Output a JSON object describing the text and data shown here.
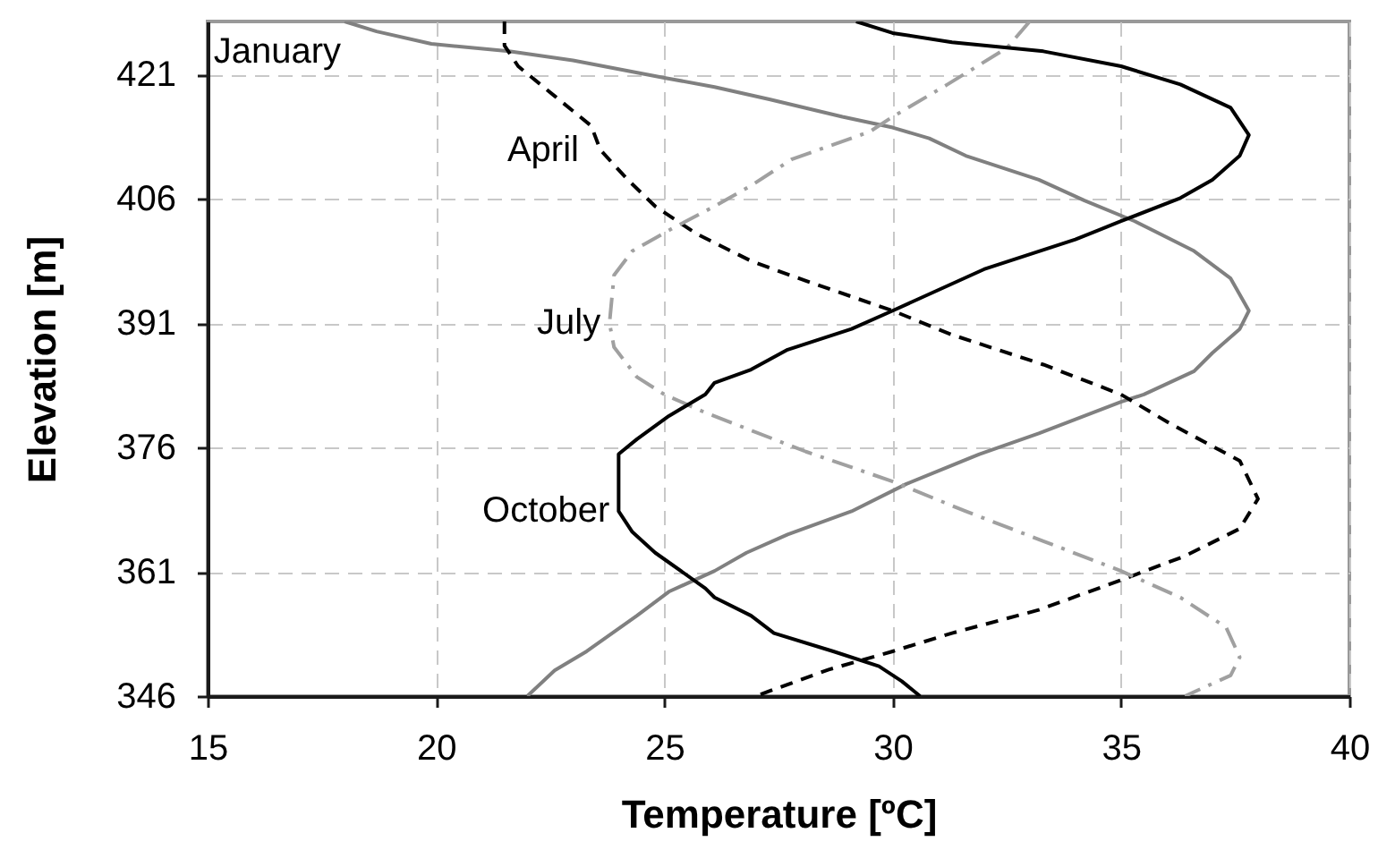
{
  "chart_data": {
    "type": "line",
    "xlabel": "Temperature [ºC]",
    "ylabel": "Elevation [m]",
    "xlim": [
      15,
      40
    ],
    "xticks": [
      15,
      20,
      25,
      30,
      35,
      40
    ],
    "ylim": [
      346,
      427.4
    ],
    "yticks": [
      346,
      361,
      376,
      391,
      406,
      421
    ],
    "grid": true,
    "series": [
      {
        "name": "January",
        "color": "#808080",
        "line_style": "solid",
        "x": [
          18.0,
          18.7,
          19.9,
          21.6,
          23.0,
          25.0,
          26.1,
          27.3,
          28.9,
          30.0,
          30.8,
          31.6,
          33.2,
          34.2,
          35.3,
          36.6,
          37.4,
          37.8,
          37.6,
          37.0,
          36.6,
          35.5,
          35.0,
          33.2,
          31.9,
          30.3,
          29.1,
          27.7,
          26.8,
          26.1,
          25.1,
          24.4,
          23.3,
          22.6,
          22.0
        ],
        "values": [
          427.4,
          426.2,
          424.7,
          423.8,
          422.7,
          420.6,
          419.5,
          418.0,
          415.9,
          414.6,
          413.3,
          411.2,
          408.3,
          405.8,
          403.3,
          399.7,
          396.4,
          392.5,
          390.3,
          387.4,
          385.2,
          382.4,
          381.5,
          377.7,
          375.2,
          371.6,
          368.3,
          365.5,
          363.3,
          361.1,
          358.6,
          355.7,
          351.4,
          349.1,
          346.0
        ]
      },
      {
        "name": "April",
        "color": "#000000",
        "line_style": "dashed",
        "x": [
          21.5,
          21.5,
          21.8,
          22.6,
          23.4,
          23.6,
          24.2,
          24.8,
          25.7,
          26.9,
          28.1,
          30.0,
          31.3,
          33.3,
          35.0,
          36.1,
          37.6,
          38.0,
          37.6,
          36.4,
          35.0,
          33.2,
          31.3,
          30.0,
          28.6,
          27.0
        ],
        "values": [
          427.4,
          424.5,
          422.0,
          418.4,
          414.8,
          411.9,
          408.3,
          405.1,
          401.8,
          398.5,
          396.1,
          392.5,
          389.6,
          386.0,
          382.4,
          378.8,
          374.4,
          369.8,
          366.2,
          362.9,
          360.0,
          356.4,
          353.6,
          351.4,
          349.2,
          346.0
        ]
      },
      {
        "name": "July",
        "color": "#a0a0a0",
        "line_style": "dashdot",
        "x": [
          33.0,
          32.5,
          31.2,
          30.0,
          29.5,
          27.8,
          26.9,
          26.1,
          25.2,
          24.3,
          23.9,
          23.8,
          23.9,
          24.4,
          25.0,
          25.9,
          28.1,
          30.0,
          31.6,
          33.3,
          35.0,
          36.3,
          37.3,
          37.6,
          37.4,
          36.4
        ],
        "values": [
          427.4,
          424.2,
          419.8,
          415.9,
          414.1,
          410.8,
          407.6,
          405.1,
          402.5,
          399.7,
          396.8,
          391.0,
          388.1,
          384.5,
          382.4,
          380.2,
          375.5,
          371.9,
          368.3,
          364.7,
          361.1,
          357.9,
          354.3,
          350.7,
          348.5,
          346.0
        ]
      },
      {
        "name": "October",
        "color": "#000000",
        "line_style": "solid",
        "x": [
          29.2,
          30.0,
          31.3,
          33.3,
          35.0,
          36.3,
          37.4,
          37.8,
          37.6,
          37.0,
          36.3,
          35.0,
          34.0,
          32.0,
          30.0,
          29.1,
          27.7,
          26.9,
          26.1,
          25.9,
          25.1,
          24.4,
          24.0,
          24.0,
          24.3,
          24.8,
          25.9,
          26.1,
          26.9,
          27.4,
          28.7,
          29.7,
          30.2,
          30.6
        ],
        "values": [
          427.4,
          426.0,
          424.9,
          423.8,
          422.0,
          419.8,
          417.0,
          413.7,
          411.2,
          408.3,
          406.1,
          403.3,
          401.1,
          397.5,
          392.5,
          390.3,
          387.8,
          385.4,
          383.8,
          382.4,
          379.8,
          377.0,
          375.2,
          368.3,
          365.8,
          363.3,
          359.0,
          357.9,
          355.7,
          353.6,
          351.4,
          349.6,
          347.8,
          346.0
        ]
      }
    ]
  }
}
